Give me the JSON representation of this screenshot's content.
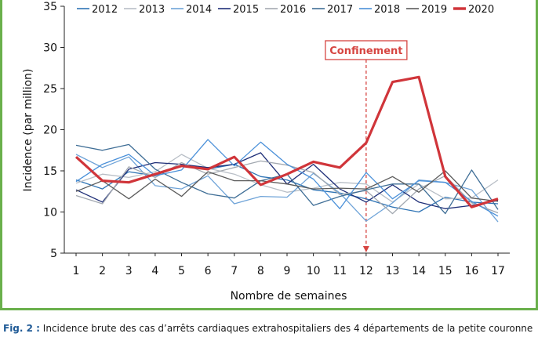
{
  "chart_data": {
    "type": "line",
    "x": [
      1,
      2,
      3,
      4,
      5,
      6,
      7,
      8,
      9,
      10,
      11,
      12,
      13,
      14,
      15,
      16,
      17
    ],
    "xlabel": "Nombre de semaines",
    "ylabel": "Incidence (par million)",
    "ylim": [
      5,
      35
    ],
    "yticks": [
      5,
      10,
      15,
      20,
      25,
      30,
      35
    ],
    "grid": false,
    "legend": "top",
    "series": [
      {
        "name": "2012",
        "color": "#2f74b5",
        "width": 1.3,
        "values": [
          13.9,
          12.8,
          14.9,
          14.4,
          15.6,
          15.2,
          15.8,
          14.3,
          13.9,
          12.7,
          12.3,
          11.6,
          10.6,
          10.0,
          11.8,
          11.2,
          11.0
        ]
      },
      {
        "name": "2013",
        "color": "#b8bec6",
        "width": 1.3,
        "values": [
          13.5,
          14.6,
          14.2,
          14.9,
          17.0,
          15.3,
          14.6,
          13.3,
          12.4,
          12.9,
          13.6,
          13.4,
          11.2,
          13.4,
          11.6,
          11.7,
          13.9
        ]
      },
      {
        "name": "2014",
        "color": "#6ea3d8",
        "width": 1.3,
        "values": [
          17.0,
          15.4,
          16.7,
          13.2,
          12.8,
          14.4,
          11.0,
          11.9,
          11.8,
          14.7,
          12.3,
          8.9,
          11.1,
          13.9,
          13.6,
          12.7,
          8.8
        ]
      },
      {
        "name": "2015",
        "color": "#1f2f78",
        "width": 1.3,
        "values": [
          12.7,
          11.2,
          15.2,
          16.0,
          15.8,
          15.4,
          15.8,
          17.2,
          13.4,
          15.8,
          12.8,
          11.2,
          13.3,
          11.2,
          10.4,
          10.8,
          11.4
        ]
      },
      {
        "name": "2016",
        "color": "#a3a9b1",
        "width": 1.3,
        "values": [
          12.0,
          11.0,
          15.5,
          14.2,
          16.0,
          14.6,
          15.4,
          16.2,
          15.7,
          14.8,
          12.1,
          12.6,
          9.8,
          12.8,
          14.4,
          11.1,
          9.9
        ]
      },
      {
        "name": "2017",
        "color": "#3f6e96",
        "width": 1.3,
        "values": [
          18.1,
          17.5,
          18.2,
          15.2,
          13.6,
          12.2,
          11.7,
          13.8,
          14.6,
          10.8,
          11.9,
          12.7,
          13.4,
          13.4,
          9.8,
          15.1,
          10.3
        ]
      },
      {
        "name": "2018",
        "color": "#4a90d9",
        "width": 1.3,
        "values": [
          13.7,
          15.8,
          17.0,
          14.4,
          15.1,
          18.8,
          15.6,
          18.5,
          15.8,
          14.0,
          10.4,
          14.8,
          11.6,
          13.8,
          13.6,
          11.3,
          9.5
        ]
      },
      {
        "name": "2019",
        "color": "#5b5b5b",
        "width": 1.3,
        "values": [
          12.5,
          13.8,
          11.6,
          14.0,
          11.9,
          14.9,
          13.8,
          13.8,
          13.4,
          12.8,
          12.9,
          12.8,
          14.3,
          12.4,
          15.0,
          11.7,
          11.3
        ]
      },
      {
        "name": "2020",
        "color": "#d0353a",
        "width": 3.2,
        "values": [
          16.7,
          13.8,
          13.6,
          14.6,
          15.6,
          15.2,
          16.7,
          13.3,
          14.6,
          16.1,
          15.4,
          18.4,
          25.8,
          26.4,
          14.3,
          10.6,
          11.6
        ]
      }
    ],
    "annotations": [
      {
        "text": "Confinement",
        "x": 12
      }
    ]
  },
  "figure": {
    "caption_label": "Fig. 2 :",
    "caption_text": "Incidence brute des cas d’arrêts cardiaques extrahospitaliers des 4 départements de la petite couronne",
    "frame_color": "#6ab04c"
  }
}
